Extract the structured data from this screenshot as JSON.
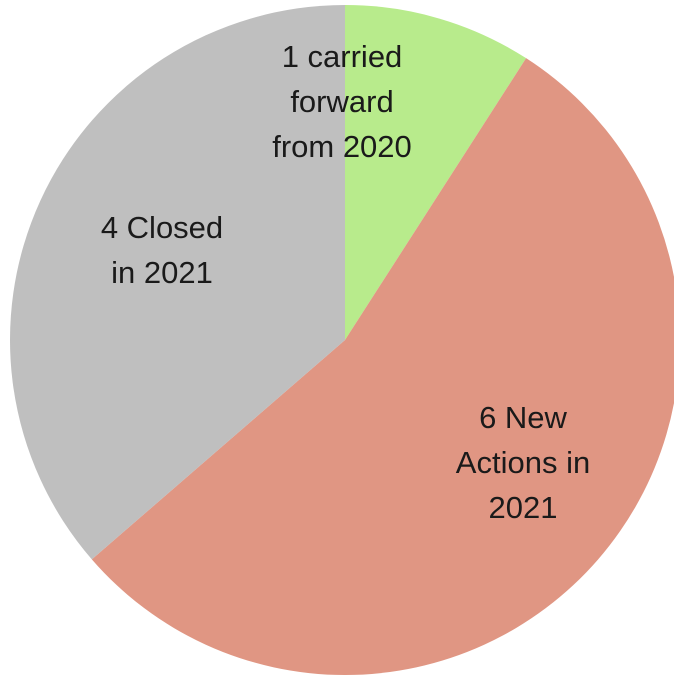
{
  "chart_data": {
    "type": "pie",
    "title": "",
    "start_angle_deg": 0,
    "direction": "clockwise",
    "legend": "none",
    "slices": [
      {
        "value": 1,
        "color": "#b8eb8c",
        "label_lines": [
          "1 carried",
          "forward",
          "from 2020"
        ]
      },
      {
        "value": 6,
        "color": "#e09683",
        "label_lines": [
          "6 New",
          "Actions in",
          "2021"
        ]
      },
      {
        "value": 4,
        "color": "#bfbfbf",
        "label_lines": [
          "4 Closed",
          "in 2021"
        ]
      }
    ]
  }
}
